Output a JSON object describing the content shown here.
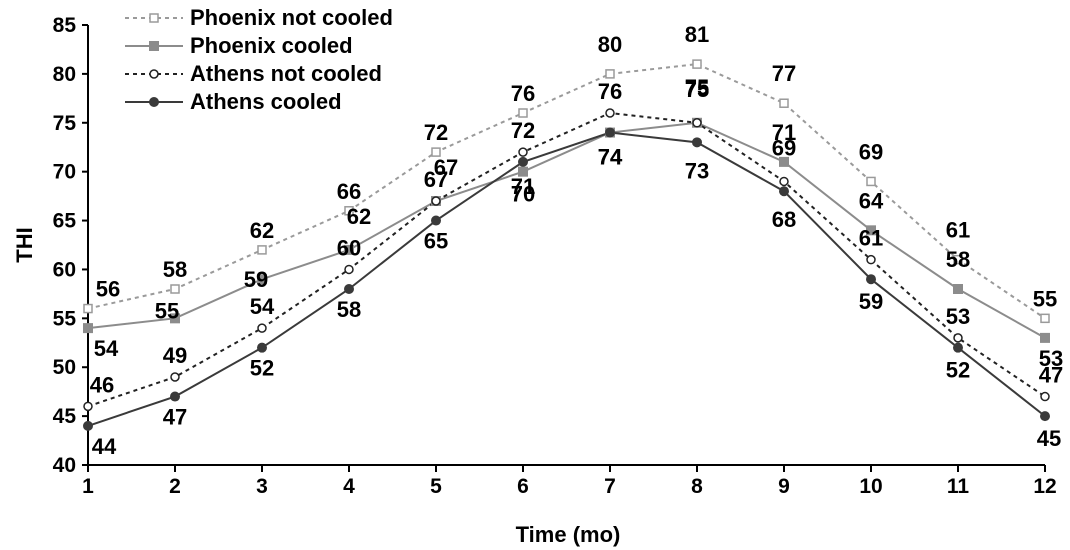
{
  "chart_data": {
    "type": "line",
    "title": "",
    "xlabel": "Time (mo)",
    "ylabel": "THI",
    "x": [
      1,
      2,
      3,
      4,
      5,
      6,
      7,
      8,
      9,
      10,
      11,
      12
    ],
    "xlim": [
      1,
      12
    ],
    "ylim": [
      40,
      85
    ],
    "yticks": [
      40,
      45,
      50,
      55,
      60,
      65,
      70,
      75,
      80,
      85
    ],
    "grid": false,
    "legend_position": "top-left",
    "series": [
      {
        "name": "Phoenix not cooled",
        "values": [
          56,
          58,
          62,
          66,
          72,
          76,
          80,
          81,
          77,
          69,
          61,
          55
        ],
        "color": "#9a9a9a",
        "dash": "4,4",
        "marker": "open-square"
      },
      {
        "name": "Phoenix cooled",
        "values": [
          54,
          55,
          59,
          62,
          67,
          70,
          74,
          75,
          71,
          64,
          58,
          53
        ],
        "color": "#8c8c8c",
        "dash": "",
        "marker": "filled-square"
      },
      {
        "name": "Athens not cooled",
        "values": [
          46,
          49,
          54,
          60,
          67,
          72,
          76,
          75,
          69,
          61,
          53,
          47
        ],
        "color": "#222222",
        "dash": "4,4",
        "marker": "open-circle"
      },
      {
        "name": "Athens cooled",
        "values": [
          44,
          47,
          52,
          58,
          65,
          71,
          74,
          73,
          68,
          59,
          52,
          45
        ],
        "color": "#3a3a3a",
        "dash": "",
        "marker": "filled-circle"
      }
    ],
    "data_labels": [
      {
        "series": 0,
        "labels": [
          "56",
          "58",
          "62",
          "66",
          "72",
          "76",
          "80",
          "81",
          "77",
          "69",
          "61",
          "55"
        ]
      },
      {
        "series": 1,
        "labels": [
          "54",
          "55",
          "59",
          "62",
          "67",
          "70",
          "74",
          "75",
          "71",
          "64",
          "58",
          "53"
        ]
      },
      {
        "series": 2,
        "labels": [
          "46",
          "49",
          "54",
          "60",
          "67",
          "72",
          "76",
          "75",
          "69",
          "61",
          "53",
          "47"
        ]
      },
      {
        "series": 3,
        "labels": [
          "44",
          "47",
          "52",
          "58",
          "65",
          "71",
          "74",
          "73",
          "68",
          "59",
          "52",
          "45"
        ]
      }
    ]
  }
}
